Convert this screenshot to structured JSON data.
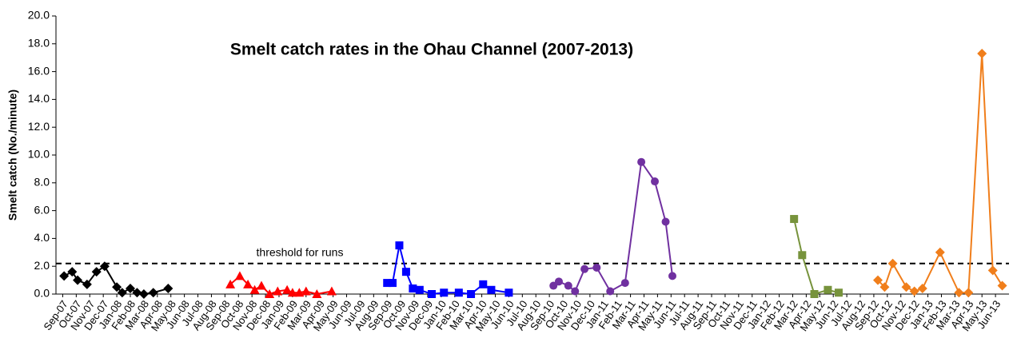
{
  "chart_data": {
    "type": "line",
    "title": "Smelt catch rates in the Ohau Channel (2007-2013)",
    "y_label": "Smelt catch (No./minute)",
    "xlim": [
      -0.5,
      70
    ],
    "xticks": [
      {
        "value": 0,
        "label": "Sep-07"
      },
      {
        "value": 1,
        "label": "Oct-07"
      },
      {
        "value": 2,
        "label": "Nov-07"
      },
      {
        "value": 3,
        "label": "Dec-07"
      },
      {
        "value": 4,
        "label": "Jan-08"
      },
      {
        "value": 5,
        "label": "Feb-08"
      },
      {
        "value": 6,
        "label": "Mar-08"
      },
      {
        "value": 7,
        "label": "Apr-08"
      },
      {
        "value": 8,
        "label": "May-08"
      },
      {
        "value": 9,
        "label": "Jun-08"
      },
      {
        "value": 10,
        "label": "Jul-08"
      },
      {
        "value": 11,
        "label": "Aug-08"
      },
      {
        "value": 12,
        "label": "Sep-08"
      },
      {
        "value": 13,
        "label": "Oct-08"
      },
      {
        "value": 14,
        "label": "Nov-08"
      },
      {
        "value": 15,
        "label": "Dec-08"
      },
      {
        "value": 16,
        "label": "Jan-09"
      },
      {
        "value": 17,
        "label": "Feb-09"
      },
      {
        "value": 18,
        "label": "Mar-09"
      },
      {
        "value": 19,
        "label": "Apr-09"
      },
      {
        "value": 20,
        "label": "May-09"
      },
      {
        "value": 21,
        "label": "Jun-09"
      },
      {
        "value": 22,
        "label": "Jul-09"
      },
      {
        "value": 23,
        "label": "Aug-09"
      },
      {
        "value": 24,
        "label": "Sep-09"
      },
      {
        "value": 25,
        "label": "Oct-09"
      },
      {
        "value": 26,
        "label": "Nov-09"
      },
      {
        "value": 27,
        "label": "Dec-09"
      },
      {
        "value": 28,
        "label": "Jan-10"
      },
      {
        "value": 29,
        "label": "Feb-10"
      },
      {
        "value": 30,
        "label": "Mar-10"
      },
      {
        "value": 31,
        "label": "Apr-10"
      },
      {
        "value": 32,
        "label": "May-10"
      },
      {
        "value": 33,
        "label": "Jun-10"
      },
      {
        "value": 34,
        "label": "Jul-10"
      },
      {
        "value": 35,
        "label": "Aug-10"
      },
      {
        "value": 36,
        "label": "Sep-10"
      },
      {
        "value": 37,
        "label": "Oct-10"
      },
      {
        "value": 38,
        "label": "Nov-10"
      },
      {
        "value": 39,
        "label": "Dec-10"
      },
      {
        "value": 40,
        "label": "Jan-11"
      },
      {
        "value": 41,
        "label": "Feb-11"
      },
      {
        "value": 42,
        "label": "Mar-11"
      },
      {
        "value": 43,
        "label": "Apr-11"
      },
      {
        "value": 44,
        "label": "May-11"
      },
      {
        "value": 45,
        "label": "Jun-11"
      },
      {
        "value": 46,
        "label": "Jul-11"
      },
      {
        "value": 47,
        "label": "Aug-11"
      },
      {
        "value": 48,
        "label": "Sep-11"
      },
      {
        "value": 49,
        "label": "Oct-11"
      },
      {
        "value": 50,
        "label": "Nov-11"
      },
      {
        "value": 51,
        "label": "Dec-11"
      },
      {
        "value": 52,
        "label": "Jan-12"
      },
      {
        "value": 53,
        "label": "Feb-12"
      },
      {
        "value": 54,
        "label": "Mar-12"
      },
      {
        "value": 55,
        "label": "Apr-12"
      },
      {
        "value": 56,
        "label": "May-12"
      },
      {
        "value": 57,
        "label": "Jun-12"
      },
      {
        "value": 58,
        "label": "Jul-12"
      },
      {
        "value": 59,
        "label": "Aug-12"
      },
      {
        "value": 60,
        "label": "Sep-12"
      },
      {
        "value": 61,
        "label": "Oct-12"
      },
      {
        "value": 62,
        "label": "Nov-12"
      },
      {
        "value": 63,
        "label": "Dec-12"
      },
      {
        "value": 64,
        "label": "Jan-13"
      },
      {
        "value": 65,
        "label": "Feb-13"
      },
      {
        "value": 66,
        "label": "Mar-13"
      },
      {
        "value": 67,
        "label": "Apr-13"
      },
      {
        "value": 68,
        "label": "May-13"
      },
      {
        "value": 69,
        "label": "Jun-13"
      }
    ],
    "ylim": [
      0,
      20
    ],
    "yticks": [
      {
        "value": 0,
        "label": "0.0"
      },
      {
        "value": 2,
        "label": "2.0"
      },
      {
        "value": 4,
        "label": "4.0"
      },
      {
        "value": 6,
        "label": "6.0"
      },
      {
        "value": 8,
        "label": "8.0"
      },
      {
        "value": 10,
        "label": "10.0"
      },
      {
        "value": 12,
        "label": "12.0"
      },
      {
        "value": 14,
        "label": "14.0"
      },
      {
        "value": 16,
        "label": "16.0"
      },
      {
        "value": 18,
        "label": "18.0"
      },
      {
        "value": 20,
        "label": "20.0"
      }
    ],
    "threshold": {
      "label": "threshold for runs",
      "value": 2.2
    },
    "series": [
      {
        "color": "#000000",
        "marker": "diamond",
        "x": [
          0.1,
          0.7,
          1.1,
          1.8,
          2.5,
          3.1,
          4.0,
          4.4,
          5.0,
          5.5,
          6.0,
          6.7,
          7.8
        ],
        "values": [
          1.3,
          1.6,
          1.0,
          0.7,
          1.6,
          2.0,
          0.5,
          0.1,
          0.4,
          0.1,
          0.0,
          0.1,
          0.4
        ]
      },
      {
        "color": "#ff0000",
        "marker": "triangle",
        "x": [
          12.4,
          13.1,
          13.7,
          14.2,
          14.7,
          15.3,
          15.9,
          16.6,
          17.0,
          17.5,
          18.0,
          18.8,
          19.9
        ],
        "values": [
          0.7,
          1.3,
          0.7,
          0.3,
          0.6,
          0.0,
          0.2,
          0.3,
          0.1,
          0.1,
          0.2,
          0.0,
          0.2
        ]
      },
      {
        "color": "#0000ff",
        "marker": "square",
        "x": [
          24.0,
          24.4,
          24.9,
          25.4,
          25.9,
          26.4,
          27.3,
          28.2,
          29.3,
          30.2,
          31.1,
          31.7,
          33.0
        ],
        "values": [
          0.8,
          0.8,
          3.5,
          1.6,
          0.4,
          0.3,
          0.0,
          0.1,
          0.1,
          0.0,
          0.7,
          0.3,
          0.1
        ]
      },
      {
        "color": "#7030a0",
        "marker": "circle",
        "x": [
          36.3,
          36.7,
          37.4,
          37.9,
          38.6,
          39.5,
          40.5,
          41.6,
          42.8,
          43.8,
          44.6,
          45.1
        ],
        "values": [
          0.6,
          0.9,
          0.6,
          0.2,
          1.8,
          1.9,
          0.2,
          0.8,
          9.5,
          8.1,
          5.2,
          1.3
        ]
      },
      {
        "color": "#77933c",
        "marker": "square",
        "x": [
          54.1,
          54.7,
          55.6,
          56.6,
          57.4
        ],
        "values": [
          5.4,
          2.8,
          0.0,
          0.3,
          0.1
        ]
      },
      {
        "color": "#f07e1b",
        "marker": "diamond",
        "x": [
          60.3,
          60.8,
          61.4,
          62.4,
          63.0,
          63.6,
          64.9,
          66.3,
          67.0,
          68.0,
          68.8,
          69.5
        ],
        "values": [
          1.0,
          0.5,
          2.2,
          0.5,
          0.2,
          0.4,
          3.0,
          0.1,
          0.1,
          17.3,
          1.7,
          0.6
        ]
      }
    ]
  }
}
